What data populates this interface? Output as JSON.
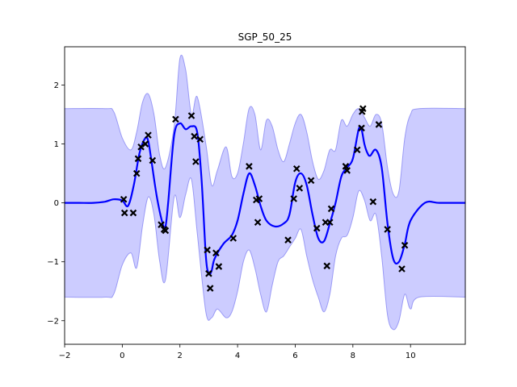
{
  "chart_data": {
    "type": "line",
    "title": "SGP_50_25",
    "xlabel": "",
    "ylabel": "",
    "xlim": [
      -2,
      11.9
    ],
    "ylim": [
      -2.4,
      2.65
    ],
    "xticks": [
      -2,
      0,
      2,
      4,
      6,
      8,
      10
    ],
    "yticks": [
      -2,
      -1,
      0,
      1,
      2
    ],
    "colors": {
      "mean": "#0000ff",
      "band_fill": "#ccccff",
      "band_edge": "#9a9af5",
      "points": "#000000"
    },
    "mean": {
      "x": [
        -2,
        -1.5,
        -1,
        -0.6,
        -0.3,
        0,
        0.2,
        0.4,
        0.6,
        0.8,
        0.9,
        1.0,
        1.2,
        1.4,
        1.5,
        1.6,
        1.8,
        2.0,
        2.2,
        2.4,
        2.6,
        2.75,
        2.9,
        3.0,
        3.1,
        3.2,
        3.5,
        3.8,
        4.0,
        4.2,
        4.4,
        4.6,
        4.8,
        5.0,
        5.3,
        5.6,
        5.8,
        6.0,
        6.2,
        6.4,
        6.6,
        6.8,
        7.0,
        7.2,
        7.4,
        7.6,
        7.8,
        8.0,
        8.2,
        8.3,
        8.4,
        8.5,
        8.6,
        8.8,
        9.0,
        9.2,
        9.4,
        9.6,
        9.8,
        10.0,
        10.5,
        11.0,
        11.9
      ],
      "y": [
        0,
        0,
        0,
        0.02,
        0.06,
        0.04,
        -0.05,
        0.3,
        0.85,
        1.1,
        1.05,
        0.75,
        0.1,
        -0.35,
        -0.4,
        0.05,
        1.15,
        1.35,
        1.25,
        1.3,
        1.2,
        0.4,
        -0.9,
        -1.2,
        -1.15,
        -0.95,
        -0.7,
        -0.55,
        -0.3,
        0.15,
        0.5,
        0.3,
        -0.05,
        -0.3,
        -0.4,
        -0.35,
        -0.2,
        0.35,
        0.5,
        0.3,
        -0.2,
        -0.6,
        -0.65,
        -0.35,
        0,
        0.45,
        0.6,
        0.75,
        1.25,
        1.25,
        1.0,
        0.85,
        0.8,
        0.9,
        0.6,
        -0.35,
        -0.95,
        -1.0,
        -0.7,
        -0.3,
        0,
        0,
        0
      ]
    },
    "band_upper": {
      "x": [
        -2,
        -0.6,
        -0.3,
        0,
        0.3,
        0.5,
        0.7,
        0.9,
        1.1,
        1.3,
        1.5,
        1.8,
        2.0,
        2.2,
        2.4,
        2.6,
        2.9,
        3.1,
        3.3,
        3.6,
        3.8,
        4.0,
        4.2,
        4.4,
        4.6,
        4.8,
        5.0,
        5.2,
        5.4,
        5.6,
        5.8,
        6.0,
        6.2,
        6.4,
        6.6,
        6.8,
        7.0,
        7.2,
        7.4,
        7.6,
        7.8,
        8.0,
        8.2,
        8.4,
        8.6,
        8.8,
        9.0,
        9.2,
        9.4,
        9.6,
        9.8,
        10.0,
        10.3,
        11.9
      ],
      "y": [
        1.6,
        1.6,
        1.55,
        1.1,
        0.9,
        1.2,
        1.7,
        1.85,
        1.5,
        0.8,
        0.6,
        1.3,
        2.45,
        2.25,
        1.5,
        1.8,
        1.0,
        0.3,
        0.55,
        0.95,
        0.45,
        0.5,
        1.0,
        1.6,
        1.5,
        0.9,
        1.4,
        1.3,
        0.9,
        0.7,
        1.0,
        1.35,
        1.5,
        1.2,
        0.7,
        0.4,
        0.55,
        0.9,
        0.9,
        1.4,
        1.3,
        1.5,
        1.6,
        1.45,
        1.3,
        1.5,
        1.35,
        0.6,
        0.15,
        0.2,
        1.1,
        1.5,
        1.6,
        1.6
      ]
    },
    "band_lower": {
      "x": [
        -2,
        -0.6,
        -0.3,
        0,
        0.3,
        0.5,
        0.7,
        0.9,
        1.1,
        1.3,
        1.5,
        1.8,
        2.0,
        2.2,
        2.4,
        2.6,
        2.9,
        3.1,
        3.3,
        3.6,
        3.8,
        4.0,
        4.2,
        4.4,
        4.6,
        4.8,
        5.0,
        5.2,
        5.4,
        5.6,
        5.8,
        6.0,
        6.2,
        6.4,
        6.6,
        6.8,
        7.0,
        7.2,
        7.4,
        7.6,
        7.8,
        8.0,
        8.2,
        8.4,
        8.6,
        8.8,
        9.0,
        9.2,
        9.4,
        9.6,
        9.8,
        10.0,
        10.3,
        11.9
      ],
      "y": [
        -1.6,
        -1.6,
        -1.55,
        -1.05,
        -0.85,
        -1.1,
        -0.4,
        0.1,
        -0.2,
        -1.0,
        -1.3,
        0.1,
        -0.25,
        0.15,
        0.4,
        -0.5,
        -1.85,
        -1.95,
        -1.8,
        -1.95,
        -1.85,
        -1.5,
        -1.0,
        -0.8,
        -1.1,
        -1.55,
        -1.85,
        -1.4,
        -1.0,
        -0.9,
        -0.75,
        -0.6,
        -0.45,
        -0.9,
        -1.3,
        -1.6,
        -1.85,
        -1.55,
        -0.9,
        -0.6,
        -0.55,
        -0.25,
        0.2,
        0.05,
        -0.3,
        -0.2,
        -0.9,
        -1.9,
        -2.15,
        -2.0,
        -1.55,
        -1.8,
        -1.6,
        -1.6
      ]
    },
    "points": {
      "x": [
        0.05,
        0.08,
        0.38,
        0.5,
        0.55,
        0.65,
        0.8,
        0.9,
        1.05,
        1.35,
        1.45,
        1.5,
        1.85,
        2.4,
        2.5,
        2.55,
        2.7,
        2.95,
        3.0,
        3.05,
        3.25,
        3.35,
        3.85,
        4.4,
        4.65,
        4.7,
        4.75,
        5.75,
        5.95,
        6.05,
        6.15,
        6.55,
        6.75,
        7.05,
        7.1,
        7.2,
        7.25,
        7.75,
        7.8,
        8.15,
        8.3,
        8.32,
        8.35,
        8.7,
        8.9,
        9.2,
        9.7,
        9.8
      ],
      "y": [
        0.06,
        -0.17,
        -0.17,
        0.5,
        0.75,
        0.95,
        1.0,
        1.15,
        0.72,
        -0.37,
        -0.45,
        -0.47,
        1.42,
        1.48,
        1.13,
        0.7,
        1.08,
        -0.8,
        -1.2,
        -1.45,
        -0.85,
        -1.08,
        -0.6,
        0.62,
        0.05,
        -0.33,
        0.07,
        -0.63,
        0.07,
        0.58,
        0.25,
        0.38,
        -0.43,
        -0.33,
        -1.07,
        -0.33,
        -0.1,
        0.62,
        0.55,
        0.9,
        1.27,
        1.55,
        1.6,
        0.02,
        1.33,
        -0.45,
        -1.12,
        -0.72
      ]
    }
  }
}
